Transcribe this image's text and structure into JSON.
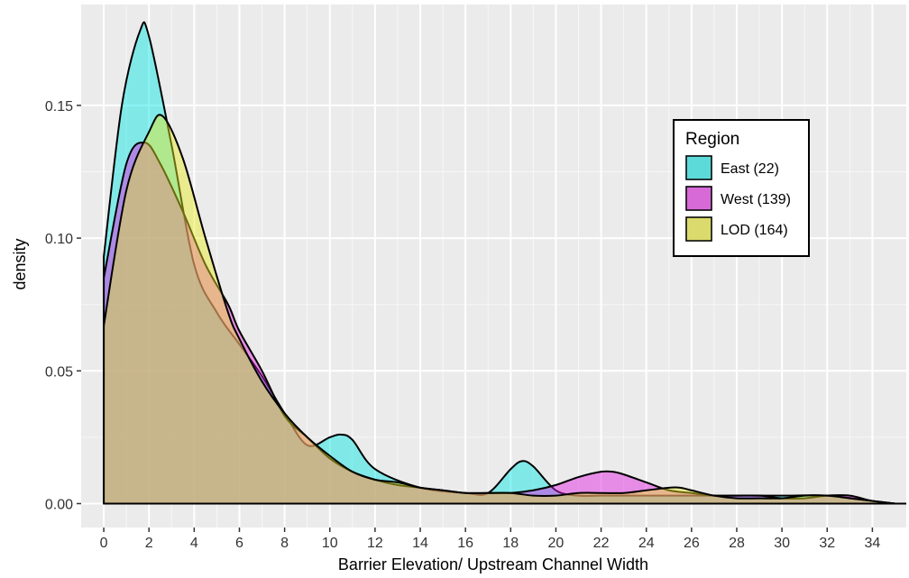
{
  "chart_data": {
    "type": "area",
    "title": "",
    "xlabel": "Barrier Elevation/ Upstream Channel Width",
    "ylabel": "density",
    "xlim": [
      -1,
      35.5
    ],
    "ylim": [
      -0.009,
      0.188
    ],
    "x_ticks": [
      0,
      2,
      4,
      6,
      8,
      10,
      12,
      14,
      16,
      18,
      20,
      22,
      24,
      26,
      28,
      30,
      32,
      34
    ],
    "x_tick_labels": [
      "0",
      "2",
      "4",
      "6",
      "8",
      "10",
      "12",
      "14",
      "16",
      "18",
      "20",
      "22",
      "24",
      "26",
      "28",
      "30",
      "32",
      "34"
    ],
    "y_ticks": [
      0,
      0.05,
      0.1,
      0.15
    ],
    "y_tick_labels": [
      "0.00",
      "0.05",
      "0.10",
      "0.15"
    ],
    "grid": true,
    "legend": {
      "title": "Region",
      "position": "top-right",
      "entries": [
        {
          "label": "East (22)",
          "color": "#00e5e5"
        },
        {
          "label": "West (139)",
          "color": "#e019e0"
        },
        {
          "label": "LOD (164)",
          "color": "#e8e81f"
        }
      ]
    },
    "series": [
      {
        "name": "East (22)",
        "color": "#00e5e5",
        "x": [
          0,
          0.8,
          1.6,
          2.0,
          3.0,
          4,
          5,
          6,
          7,
          8,
          9,
          10,
          10.5,
          11,
          12,
          14,
          16,
          17,
          18,
          18.5,
          19,
          20,
          21,
          22,
          24,
          26,
          28,
          30,
          32,
          34,
          35
        ],
        "values": [
          0.093,
          0.15,
          0.178,
          0.176,
          0.135,
          0.09,
          0.072,
          0.06,
          0.048,
          0.034,
          0.022,
          0.025,
          0.026,
          0.024,
          0.013,
          0.006,
          0.004,
          0.004,
          0.013,
          0.016,
          0.014,
          0.005,
          0.003,
          0.003,
          0.003,
          0.003,
          0.003,
          0.003,
          0.003,
          0.001,
          0
        ]
      },
      {
        "name": "West (139)",
        "color": "#e019e0",
        "x": [
          0,
          1,
          1.8,
          2.5,
          3.5,
          4.5,
          5.5,
          6,
          7,
          8,
          9,
          10,
          11,
          12,
          13,
          14,
          15,
          16,
          17,
          18,
          19,
          20,
          21,
          22,
          22.5,
          23,
          24,
          25,
          26,
          27,
          28,
          29,
          30,
          31,
          32,
          33,
          34,
          35
        ],
        "values": [
          0.085,
          0.128,
          0.136,
          0.128,
          0.11,
          0.09,
          0.075,
          0.065,
          0.05,
          0.033,
          0.025,
          0.017,
          0.012,
          0.009,
          0.007,
          0.006,
          0.005,
          0.004,
          0.004,
          0.004,
          0.005,
          0.007,
          0.01,
          0.012,
          0.012,
          0.011,
          0.008,
          0.005,
          0.004,
          0.003,
          0.003,
          0.003,
          0.002,
          0.002,
          0.003,
          0.003,
          0.001,
          0
        ]
      },
      {
        "name": "LOD (164)",
        "color": "#e8e81f",
        "x": [
          0,
          1,
          2,
          2.6,
          3.5,
          4.5,
          5.5,
          6,
          7,
          8,
          9,
          10,
          11,
          12,
          13,
          14,
          15,
          16,
          17,
          18,
          19,
          20,
          21,
          22,
          23,
          24,
          25,
          25.5,
          26,
          27,
          28,
          29,
          30,
          31,
          32,
          33,
          34,
          35
        ],
        "values": [
          0.067,
          0.118,
          0.14,
          0.146,
          0.13,
          0.1,
          0.072,
          0.062,
          0.046,
          0.034,
          0.025,
          0.018,
          0.012,
          0.009,
          0.008,
          0.006,
          0.005,
          0.004,
          0.004,
          0.004,
          0.003,
          0.003,
          0.004,
          0.004,
          0.004,
          0.005,
          0.006,
          0.006,
          0.005,
          0.003,
          0.002,
          0.002,
          0.002,
          0.003,
          0.003,
          0.002,
          0.001,
          0
        ]
      }
    ]
  }
}
